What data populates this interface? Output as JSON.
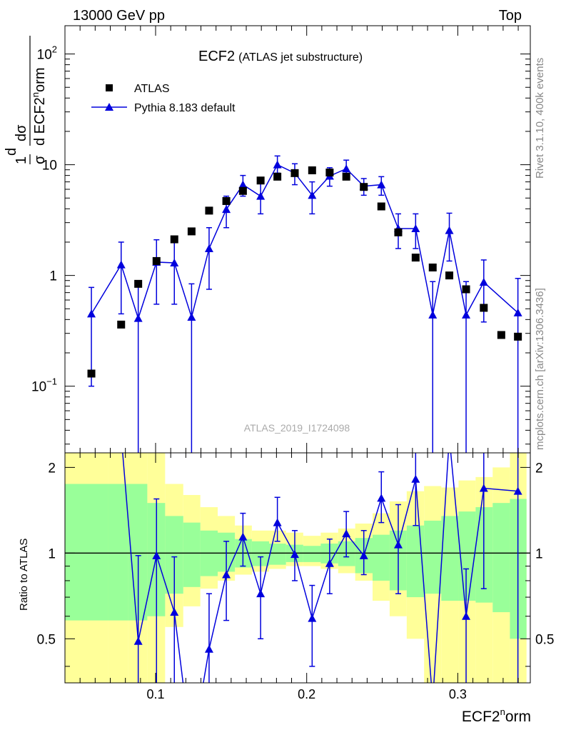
{
  "header": {
    "left": "13000 GeV pp",
    "right": "Top"
  },
  "side": {
    "rivet": "Rivet 3.1.10,  400k events",
    "mcplots": "mcplots.cern.ch [arXiv:1306.3436]"
  },
  "chart_data": {
    "type": "scatter",
    "title": "ECF2",
    "subtitle": "(ATLAS jet substructure)",
    "analysis_id": "ATLAS_2019_I1724098",
    "xlabel_main": "ECF2",
    "xlabel_sup": "n",
    "xlabel_tail": "orm",
    "ylabel": "1/σ dσ/d ECF2^norm",
    "ylabel_parts": {
      "frac1_num": "1",
      "frac1_den": "σ",
      "frac2_num": "dσ",
      "frac2_den": "d ECF2",
      "sup": "n",
      "tail": "orm",
      "lead": "d"
    },
    "xlim": [
      0.04,
      0.348
    ],
    "ylim": [
      0.025,
      180
    ],
    "yscale": "log",
    "x_ticks": [
      {
        "v": 0.1,
        "label": "0.1"
      },
      {
        "v": 0.2,
        "label": "0.2"
      },
      {
        "v": 0.3,
        "label": "0.3"
      }
    ],
    "y_ticks": [
      {
        "v": 0.1,
        "label": "10",
        "sup": "−1"
      },
      {
        "v": 1,
        "label": "1"
      },
      {
        "v": 10,
        "label": "10"
      },
      {
        "v": 100,
        "label": "10",
        "sup": "2"
      }
    ],
    "legend": {
      "position": "top-left",
      "entries": [
        "ATLAS",
        "Pythia 8.183 default"
      ]
    },
    "series": [
      {
        "name": "ATLAS",
        "marker": "square",
        "color": "#000000",
        "x": [
          0.0575,
          0.0772,
          0.0885,
          0.1006,
          0.1124,
          0.1238,
          0.1354,
          0.1468,
          0.1578,
          0.1695,
          0.1806,
          0.1921,
          0.2036,
          0.2152,
          0.2262,
          0.2378,
          0.2494,
          0.2606,
          0.2721,
          0.2834,
          0.2944,
          0.3055,
          0.3172,
          0.3288,
          0.3398
        ],
        "y": [
          0.13,
          0.36,
          0.84,
          1.35,
          2.12,
          2.5,
          3.85,
          4.7,
          5.8,
          7.2,
          7.8,
          8.4,
          8.9,
          8.5,
          7.8,
          6.3,
          4.2,
          2.45,
          1.45,
          1.18,
          1.0,
          0.75,
          0.51,
          0.29,
          0.28
        ]
      },
      {
        "name": "Pythia 8.183 default",
        "marker": "triangle",
        "color": "#0000dd",
        "x": [
          0.0575,
          0.0772,
          0.0885,
          0.1006,
          0.1124,
          0.1238,
          0.1354,
          0.1468,
          0.1578,
          0.1695,
          0.1806,
          0.1921,
          0.2036,
          0.2152,
          0.2262,
          0.2378,
          0.2494,
          0.2606,
          0.2721,
          0.2834,
          0.2944,
          0.3055,
          0.3172,
          0.3398
        ],
        "y": [
          0.45,
          1.25,
          0.41,
          1.32,
          1.3,
          0.42,
          1.75,
          3.95,
          6.6,
          5.2,
          10.0,
          8.4,
          5.3,
          7.9,
          9.2,
          6.4,
          6.6,
          2.65,
          2.65,
          0.44,
          2.55,
          0.44,
          0.87,
          0.46
        ],
        "y_low": [
          0.1,
          0.45,
          0.001,
          0.55,
          0.55,
          0.001,
          0.75,
          2.7,
          5.2,
          3.6,
          8.4,
          6.6,
          3.6,
          6.4,
          7.5,
          5.3,
          5.3,
          1.75,
          1.75,
          0.001,
          1.35,
          0.001,
          0.38,
          0.001
        ],
        "y_high": [
          0.78,
          2.0,
          0.84,
          2.1,
          2.05,
          0.84,
          2.7,
          5.2,
          8.0,
          6.8,
          12.0,
          10.2,
          7.0,
          9.4,
          11.0,
          7.5,
          7.8,
          3.6,
          3.6,
          0.88,
          3.65,
          0.88,
          1.38,
          0.94
        ]
      }
    ],
    "ratio": {
      "ylabel": "Ratio to ATLAS",
      "ylim": [
        0.35,
        2.25
      ],
      "y_ticks": [
        {
          "v": 0.5,
          "label": "0.5"
        },
        {
          "v": 1,
          "label": "1"
        },
        {
          "v": 2,
          "label": "2"
        }
      ],
      "bands": {
        "bin_edges": [
          0.04,
          0.0688,
          0.082,
          0.0945,
          0.1063,
          0.1183,
          0.1296,
          0.1411,
          0.1525,
          0.1637,
          0.1751,
          0.1863,
          0.1977,
          0.2093,
          0.2208,
          0.2321,
          0.2436,
          0.2549,
          0.2662,
          0.2777,
          0.2891,
          0.3005,
          0.3118,
          0.3231,
          0.3345,
          0.3455
        ],
        "yellow_low": [
          0.35,
          0.35,
          0.35,
          0.35,
          0.55,
          0.65,
          0.75,
          0.8,
          0.84,
          0.86,
          0.88,
          0.9,
          0.9,
          0.88,
          0.85,
          0.8,
          0.68,
          0.6,
          0.5,
          0.35,
          0.35,
          0.35,
          0.35,
          0.35,
          0.35
        ],
        "yellow_high": [
          2.25,
          2.25,
          2.25,
          2.25,
          1.75,
          1.6,
          1.45,
          1.35,
          1.25,
          1.2,
          1.2,
          1.18,
          1.15,
          1.18,
          1.22,
          1.27,
          1.38,
          1.52,
          1.65,
          1.72,
          1.7,
          1.8,
          1.85,
          2.0,
          2.25
        ],
        "green_low": [
          0.58,
          0.58,
          0.58,
          0.6,
          0.72,
          0.76,
          0.83,
          0.86,
          0.89,
          0.9,
          0.91,
          0.93,
          0.93,
          0.92,
          0.9,
          0.85,
          0.8,
          0.74,
          0.7,
          0.72,
          0.68,
          0.68,
          0.67,
          0.62,
          0.5
        ],
        "green_high": [
          1.75,
          1.75,
          1.75,
          1.5,
          1.35,
          1.28,
          1.2,
          1.18,
          1.12,
          1.1,
          1.08,
          1.07,
          1.06,
          1.08,
          1.1,
          1.13,
          1.16,
          1.2,
          1.25,
          1.3,
          1.35,
          1.4,
          1.45,
          1.5,
          1.55
        ]
      },
      "ratio_points": {
        "x": [
          0.0885,
          0.1006,
          0.1124,
          0.1354,
          0.1468,
          0.1578,
          0.1695,
          0.1806,
          0.1921,
          0.2036,
          0.2152,
          0.2262,
          0.2378,
          0.2494,
          0.2606,
          0.2721,
          0.3055,
          0.3172,
          0.3398
        ],
        "y": [
          0.49,
          0.98,
          0.62,
          0.46,
          0.84,
          1.14,
          0.72,
          1.28,
          0.99,
          0.59,
          0.92,
          1.17,
          0.98,
          1.56,
          1.07,
          1.82,
          0.6,
          1.69,
          1.65
        ],
        "y_low": [
          0.35,
          0.35,
          0.35,
          0.35,
          0.58,
          0.9,
          0.5,
          1.1,
          0.8,
          0.4,
          0.72,
          0.97,
          0.84,
          1.28,
          0.72,
          1.25,
          0.35,
          0.75,
          0.35
        ],
        "y_high": [
          0.98,
          1.55,
          0.97,
          0.72,
          1.1,
          1.38,
          0.97,
          1.57,
          1.2,
          0.77,
          1.12,
          1.4,
          1.2,
          1.93,
          1.48,
          2.25,
          0.88,
          2.25,
          2.25
        ]
      },
      "ratio_curve_x": [
        0.0772,
        0.0885,
        0.1006,
        0.1124,
        0.1238,
        0.1354,
        0.1468,
        0.1578,
        0.1695,
        0.1806,
        0.1921,
        0.2036,
        0.2152,
        0.2262,
        0.2378,
        0.2494,
        0.2606,
        0.2721,
        0.2834,
        0.2944,
        0.3055,
        0.3172,
        0.3398
      ],
      "ratio_curve_y": [
        2.6,
        0.49,
        0.98,
        0.62,
        0.2,
        0.46,
        0.84,
        1.14,
        0.72,
        1.28,
        0.99,
        0.59,
        0.92,
        1.17,
        0.98,
        1.56,
        1.07,
        1.82,
        0.3,
        2.55,
        0.6,
        1.69,
        1.65
      ]
    }
  }
}
